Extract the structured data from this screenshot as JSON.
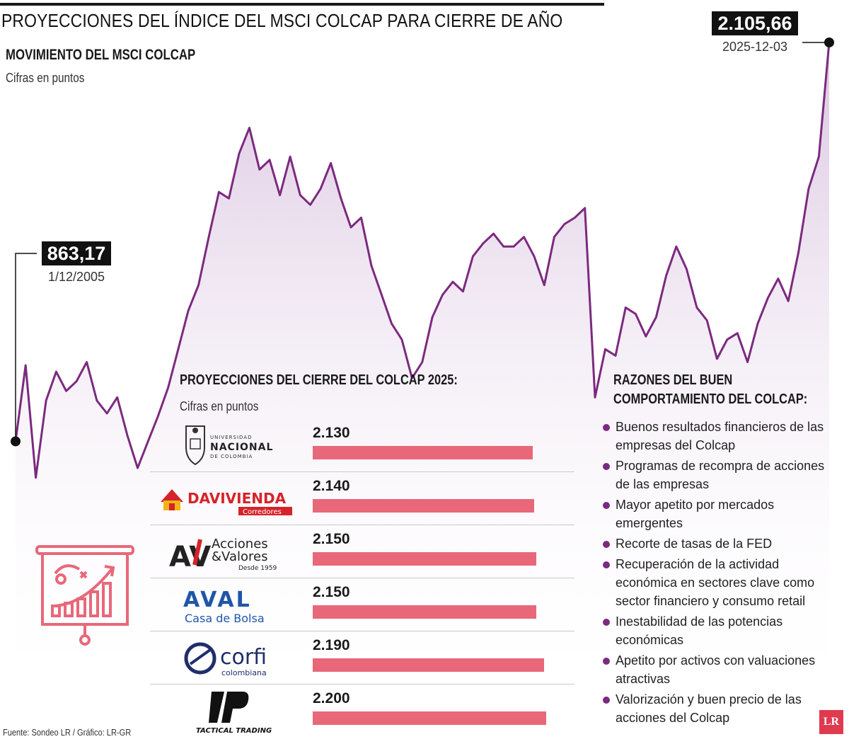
{
  "header": {
    "title": "PROYECCIONES DEL ÍNDICE DEL MSCI COLCAP PARA CIERRE DE AÑO",
    "subtitle": "MOVIMIENTO DEL MSCI COLCAP",
    "units": "Cifras en puntos"
  },
  "callouts": {
    "start": {
      "value": "863,17",
      "date": "1/12/2005"
    },
    "end": {
      "value": "2.105,66",
      "date": "2025-12-03"
    }
  },
  "colors": {
    "line": "#7b2a7f",
    "fill_top": "#d9c3df",
    "fill_bottom": "#ffffff",
    "bar": "#e8687a",
    "accent": "#e03a4f"
  },
  "chart_data": {
    "type": "area",
    "x": [
      "2005-12-01",
      "2006-03-01",
      "2006-06-01",
      "2006-09-01",
      "2006-12-01",
      "2007-03-01",
      "2007-06-01",
      "2007-09-01",
      "2007-12-01",
      "2008-03-01",
      "2008-06-01",
      "2008-09-01",
      "2008-12-01",
      "2009-03-01",
      "2009-06-01",
      "2009-09-01",
      "2009-12-01",
      "2010-03-01",
      "2010-06-01",
      "2010-09-01",
      "2010-12-01",
      "2011-03-01",
      "2011-06-01",
      "2011-09-01",
      "2011-12-01",
      "2012-03-01",
      "2012-06-01",
      "2012-09-01",
      "2012-12-01",
      "2013-03-01",
      "2013-06-01",
      "2013-09-01",
      "2013-12-01",
      "2014-03-01",
      "2014-06-01",
      "2014-09-01",
      "2014-12-01",
      "2015-03-01",
      "2015-06-01",
      "2015-09-01",
      "2015-12-01",
      "2016-03-01",
      "2016-06-01",
      "2016-09-01",
      "2016-12-01",
      "2017-03-01",
      "2017-06-01",
      "2017-09-01",
      "2017-12-01",
      "2018-03-01",
      "2018-06-01",
      "2018-09-01",
      "2018-12-01",
      "2019-03-01",
      "2019-06-01",
      "2019-09-01",
      "2019-12-01",
      "2020-03-01",
      "2020-06-01",
      "2020-09-01",
      "2020-12-01",
      "2021-03-01",
      "2021-06-01",
      "2021-09-01",
      "2021-12-01",
      "2022-03-01",
      "2022-06-01",
      "2022-09-01",
      "2022-12-01",
      "2023-03-01",
      "2023-06-01",
      "2023-09-01",
      "2023-12-01",
      "2024-03-01",
      "2024-06-01",
      "2024-09-01",
      "2024-12-01",
      "2025-03-01",
      "2025-06-01",
      "2025-09-01",
      "2025-12-03"
    ],
    "y": [
      863,
      1100,
      750,
      990,
      1080,
      1020,
      1050,
      1110,
      990,
      950,
      1000,
      880,
      780,
      860,
      940,
      1030,
      1150,
      1270,
      1350,
      1500,
      1640,
      1620,
      1760,
      1840,
      1710,
      1740,
      1630,
      1750,
      1630,
      1600,
      1650,
      1730,
      1620,
      1530,
      1560,
      1410,
      1320,
      1230,
      1180,
      1060,
      1110,
      1250,
      1320,
      1360,
      1330,
      1440,
      1480,
      1510,
      1470,
      1470,
      1500,
      1440,
      1350,
      1500,
      1540,
      1560,
      1590,
      1000,
      1150,
      1130,
      1280,
      1260,
      1190,
      1250,
      1380,
      1470,
      1400,
      1280,
      1240,
      1120,
      1180,
      1200,
      1110,
      1230,
      1310,
      1370,
      1300,
      1450,
      1650,
      1750,
      2106
    ],
    "ylim": [
      650,
      2150
    ],
    "start_label": "863,17",
    "end_label": "2.105,66"
  },
  "projections": {
    "title": "PROYECCIONES DEL CIERRE DEL COLCAP 2025:",
    "units": "Cifras en puntos",
    "bar_min": 1000,
    "bar_max": 2230,
    "items": [
      {
        "source": "Universidad Nacional de Colombia",
        "value": 2130,
        "label": "2.130",
        "logo": "unal-logo"
      },
      {
        "source": "Davivienda Corredores",
        "value": 2140,
        "label": "2.140",
        "logo": "davivienda-logo"
      },
      {
        "source": "Acciones & Valores",
        "value": 2150,
        "label": "2.150",
        "logo": "acciones-valores-logo"
      },
      {
        "source": "AVAL Casa de Bolsa",
        "value": 2150,
        "label": "2.150",
        "logo": "aval-logo"
      },
      {
        "source": "Corfi Colombiana",
        "value": 2190,
        "label": "2.190",
        "logo": "corfi-logo"
      },
      {
        "source": "Tactical Trading",
        "value": 2200,
        "label": "2.200",
        "logo": "tactical-trading-logo"
      }
    ]
  },
  "logos": {
    "unal": {
      "line1": "UNIVERSIDAD",
      "line2": "NACIONAL",
      "line3": "DE COLOMBIA"
    },
    "davivienda": {
      "name": "DAVIVIENDA",
      "sub": "Corredores"
    },
    "acciones": {
      "mark": "AV",
      "line1": "Acciones",
      "line2": "&Valores",
      "line3": "Desde 1959"
    },
    "aval": {
      "name": "AVAL",
      "sub": "Casa de Bolsa"
    },
    "corfi": {
      "name": "corfi",
      "sub": "colombiana"
    },
    "tactical": {
      "name": "TACTICAL TRADING"
    }
  },
  "reasons": {
    "title": "RAZONES DEL BUEN COMPORTAMIENTO DEL COLCAP:",
    "items": [
      "Buenos resultados financieros de las empresas del Colcap",
      "Programas de recompra de acciones de las empresas",
      "Mayor apetito por mercados emergentes",
      "Recorte de tasas de la FED",
      "Recuperación de la actividad económica en sectores clave como sector financiero y consumo retail",
      "Inestabilidad de las potencias económicas",
      "Apetito por activos con valuaciones atractivas",
      "Valorización y buen precio de las acciones del Colcap"
    ]
  },
  "footer": {
    "source": "Fuente: Sondeo LR / Gráfico: LR-GR",
    "brand": "LR"
  }
}
